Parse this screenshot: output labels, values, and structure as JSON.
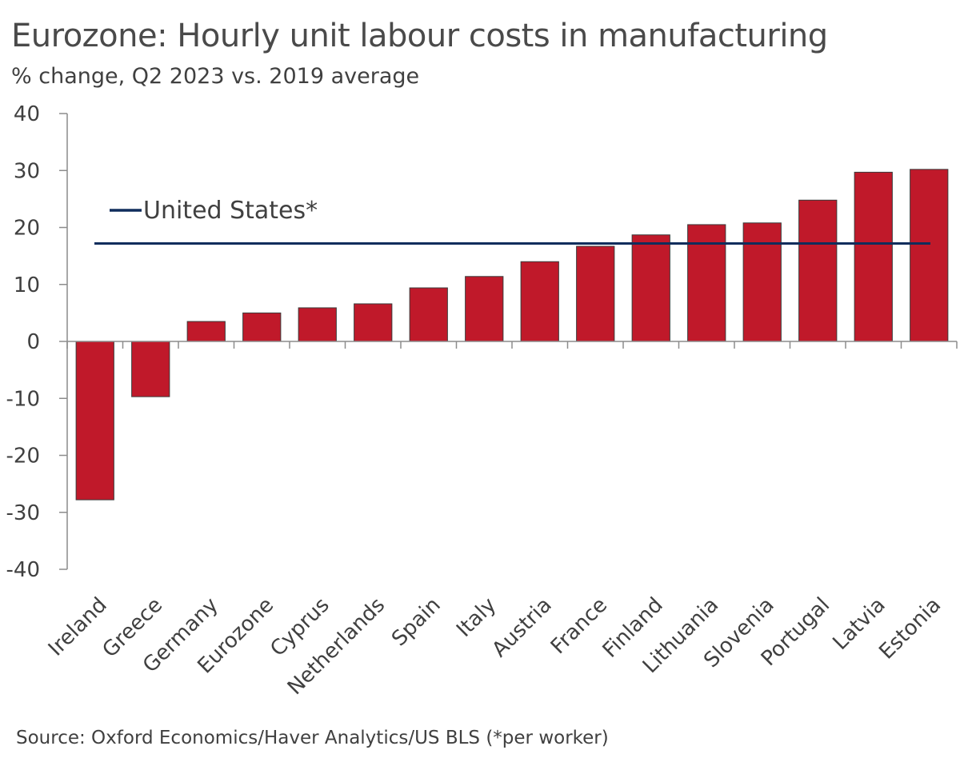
{
  "chart_data": {
    "type": "bar",
    "title": "Eurozone: Hourly unit labour costs in manufacturing",
    "subtitle": "% change, Q2 2023 vs. 2019 average",
    "xlabel": "",
    "ylabel": "",
    "ylim": [
      -40,
      40
    ],
    "yticks": [
      40,
      30,
      20,
      10,
      0,
      -10,
      -20,
      -30,
      -40
    ],
    "categories": [
      "Ireland",
      "Greece",
      "Germany",
      "Eurozone",
      "Cyprus",
      "Netherlands",
      "Spain",
      "Italy",
      "Austria",
      "France",
      "Finland",
      "Lithuania",
      "Slovenia",
      "Portugal",
      "Latvia",
      "Estonia"
    ],
    "values": [
      -27.8,
      -9.7,
      3.5,
      5.0,
      5.9,
      6.6,
      9.4,
      11.4,
      14.0,
      16.7,
      18.7,
      20.5,
      20.8,
      24.8,
      29.7,
      30.2
    ],
    "bar_color": "#c0192a",
    "reference_line": {
      "name": "United States*",
      "value": 17.2,
      "color": "#0f2d5c"
    },
    "legend": "top-left",
    "grid": false,
    "source": "Source: Oxford Economics/Haver Analytics/US BLS (*per worker)"
  }
}
